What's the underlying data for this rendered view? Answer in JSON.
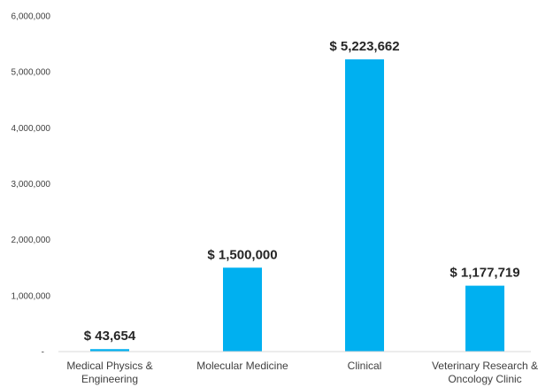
{
  "chart_data": {
    "type": "bar",
    "categories": [
      [
        "Medical Physics &",
        "Engineering"
      ],
      [
        "Molecular Medicine"
      ],
      [
        "Clinical"
      ],
      [
        "Veterinary Research &",
        "Oncology Clinic"
      ]
    ],
    "values": [
      43654,
      1500000,
      5223662,
      1177719
    ],
    "data_labels": [
      "$ 43,654",
      "$ 1,500,000",
      "$ 5,223,662",
      "$ 1,177,719"
    ],
    "ylim": [
      0,
      6000000
    ],
    "yticks": [
      {
        "value": 0,
        "label": "-"
      },
      {
        "value": 1000000,
        "label": "1,000,000"
      },
      {
        "value": 2000000,
        "label": "2,000,000"
      },
      {
        "value": 3000000,
        "label": "3,000,000"
      },
      {
        "value": 4000000,
        "label": "4,000,000"
      },
      {
        "value": 5000000,
        "label": "5,000,000"
      },
      {
        "value": 6000000,
        "label": "6,000,000"
      }
    ],
    "grid": false,
    "legend": "none",
    "title": "",
    "xlabel": "",
    "ylabel": "",
    "bar_color": "#00B0F0",
    "axis_color": "#D9D9D9"
  }
}
